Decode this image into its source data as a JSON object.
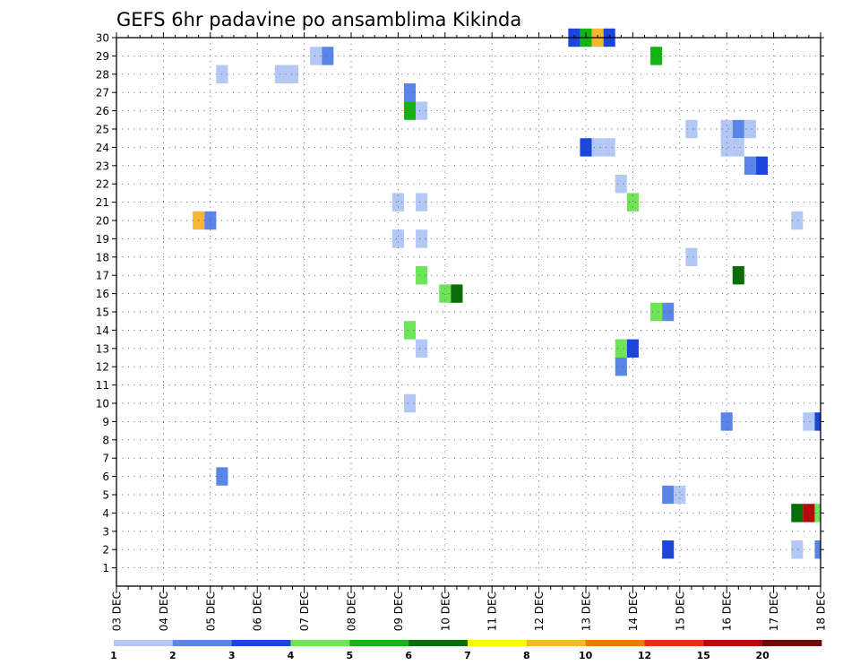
{
  "chart_data": {
    "type": "heatmap",
    "title": "GEFS 6hr padavine po ansamblima Kikinda",
    "xlabel": "",
    "ylabel": "",
    "x_unit": "6-hour step from 03 DEC 00z",
    "x_range": [
      0,
      60
    ],
    "y_range": [
      0,
      30
    ],
    "x_tick_labels": [
      "03 DEC",
      "04 DEC",
      "05 DEC",
      "06 DEC",
      "07 DEC",
      "08 DEC",
      "09 DEC",
      "10 DEC",
      "11 DEC",
      "12 DEC",
      "13 DEC",
      "14 DEC",
      "15 DEC",
      "16 DEC",
      "17 DEC",
      "18 DEC"
    ],
    "y_ticks": [
      1,
      2,
      3,
      4,
      5,
      6,
      7,
      8,
      9,
      10,
      11,
      12,
      13,
      14,
      15,
      16,
      17,
      18,
      19,
      20,
      21,
      22,
      23,
      24,
      25,
      26,
      27,
      28,
      29,
      30
    ],
    "legend": {
      "labels": [
        "1",
        "2",
        "3",
        "4",
        "5",
        "6",
        "7",
        "8",
        "10",
        "12",
        "15",
        "20"
      ],
      "colors": [
        "#b4c8f5",
        "#5a86ea",
        "#1a46dc",
        "#6ee458",
        "#14b414",
        "#086e08",
        "#fafa00",
        "#f5b632",
        "#f2780a",
        "#e43214",
        "#b40a0a",
        "#6e0a0a"
      ]
    },
    "cells": [
      {
        "member": 30,
        "step": 39,
        "level": 3
      },
      {
        "member": 30,
        "step": 40,
        "level": 5
      },
      {
        "member": 30,
        "step": 41,
        "level": 8
      },
      {
        "member": 30,
        "step": 42,
        "level": 3
      },
      {
        "member": 29,
        "step": 17,
        "level": 1
      },
      {
        "member": 29,
        "step": 18,
        "level": 2
      },
      {
        "member": 29,
        "step": 46,
        "level": 5
      },
      {
        "member": 28,
        "step": 9,
        "level": 1
      },
      {
        "member": 28,
        "step": 14,
        "level": 1
      },
      {
        "member": 28,
        "step": 15,
        "level": 1
      },
      {
        "member": 27,
        "step": 25,
        "level": 2
      },
      {
        "member": 26,
        "step": 25,
        "level": 5
      },
      {
        "member": 26,
        "step": 26,
        "level": 1
      },
      {
        "member": 25,
        "step": 49,
        "level": 1
      },
      {
        "member": 25,
        "step": 52,
        "level": 1
      },
      {
        "member": 25,
        "step": 53,
        "level": 2
      },
      {
        "member": 25,
        "step": 54,
        "level": 1
      },
      {
        "member": 24,
        "step": 40,
        "level": 3
      },
      {
        "member": 24,
        "step": 41,
        "level": 1
      },
      {
        "member": 24,
        "step": 42,
        "level": 1
      },
      {
        "member": 24,
        "step": 52,
        "level": 1
      },
      {
        "member": 24,
        "step": 53,
        "level": 1
      },
      {
        "member": 23,
        "step": 54,
        "level": 2
      },
      {
        "member": 23,
        "step": 55,
        "level": 3
      },
      {
        "member": 22,
        "step": 43,
        "level": 1
      },
      {
        "member": 21,
        "step": 24,
        "level": 1
      },
      {
        "member": 21,
        "step": 26,
        "level": 1
      },
      {
        "member": 21,
        "step": 44,
        "level": 4
      },
      {
        "member": 20,
        "step": 7,
        "level": 8
      },
      {
        "member": 20,
        "step": 8,
        "level": 2
      },
      {
        "member": 20,
        "step": 58,
        "level": 1
      },
      {
        "member": 19,
        "step": 24,
        "level": 1
      },
      {
        "member": 19,
        "step": 26,
        "level": 1
      },
      {
        "member": 18,
        "step": 49,
        "level": 1
      },
      {
        "member": 17,
        "step": 26,
        "level": 4
      },
      {
        "member": 17,
        "step": 53,
        "level": 6
      },
      {
        "member": 16,
        "step": 28,
        "level": 4
      },
      {
        "member": 16,
        "step": 29,
        "level": 6
      },
      {
        "member": 15,
        "step": 46,
        "level": 4
      },
      {
        "member": 15,
        "step": 47,
        "level": 2
      },
      {
        "member": 14,
        "step": 25,
        "level": 4
      },
      {
        "member": 13,
        "step": 26,
        "level": 1
      },
      {
        "member": 13,
        "step": 43,
        "level": 4
      },
      {
        "member": 13,
        "step": 44,
        "level": 3
      },
      {
        "member": 12,
        "step": 43,
        "level": 2
      },
      {
        "member": 10,
        "step": 25,
        "level": 1
      },
      {
        "member": 9,
        "step": 52,
        "level": 2
      },
      {
        "member": 9,
        "step": 59,
        "level": 1
      },
      {
        "member": 9,
        "step": 60,
        "level": 3
      },
      {
        "member": 6,
        "step": 9,
        "level": 2
      },
      {
        "member": 5,
        "step": 47,
        "level": 2
      },
      {
        "member": 5,
        "step": 48,
        "level": 1
      },
      {
        "member": 4,
        "step": 58,
        "level": 6
      },
      {
        "member": 4,
        "step": 59,
        "level": 11
      },
      {
        "member": 4,
        "step": 60,
        "level": 4
      },
      {
        "member": 2,
        "step": 58,
        "level": 1
      },
      {
        "member": 2,
        "step": 60,
        "level": 2
      },
      {
        "member": 2,
        "step": 47,
        "level": 3
      }
    ]
  }
}
